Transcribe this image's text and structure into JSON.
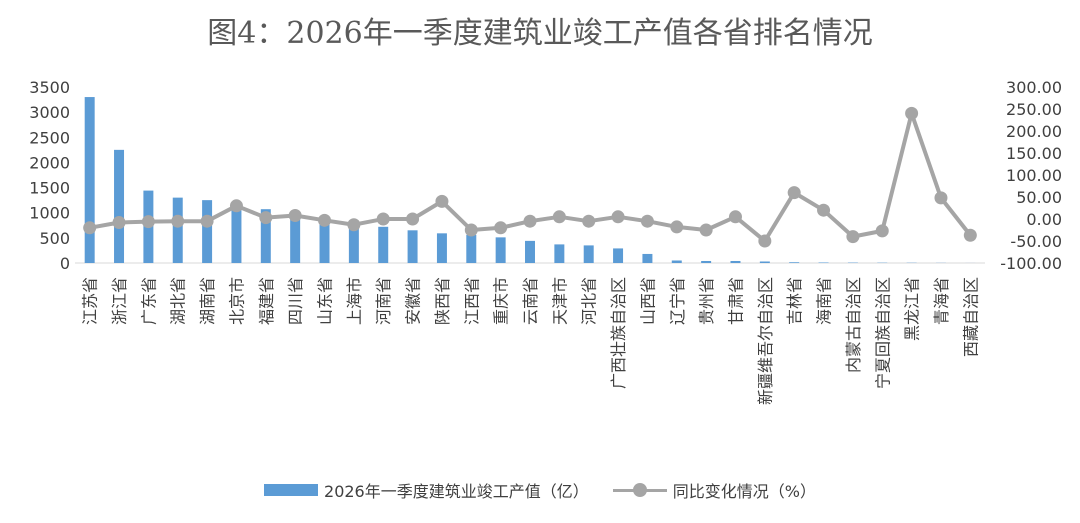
{
  "chart_data": {
    "type": "bar",
    "title": "图4：2026年一季度建筑业竣工产值各省排名情况",
    "categories": [
      "江苏省",
      "浙江省",
      "广东省",
      "湖北省",
      "湖南省",
      "北京市",
      "福建省",
      "四川省",
      "山东省",
      "上海市",
      "河南省",
      "安徽省",
      "陕西省",
      "江西省",
      "重庆市",
      "云南省",
      "天津市",
      "河北省",
      "广西壮族自治区",
      "山西省",
      "辽宁省",
      "贵州省",
      "甘肃省",
      "新疆维吾尔自治区",
      "吉林省",
      "海南省",
      "内蒙古自治区",
      "宁夏回族自治区",
      "黑龙江省",
      "青海省",
      "西藏自治区"
    ],
    "series": [
      {
        "name": "2026年一季度建筑业竣工产值（亿）",
        "type": "bar",
        "axis": "left",
        "color": "#5b9bd5",
        "values": [
          3300,
          2250,
          1440,
          1300,
          1250,
          1180,
          1070,
          980,
          880,
          780,
          720,
          650,
          590,
          560,
          510,
          440,
          370,
          350,
          290,
          180,
          50,
          40,
          40,
          30,
          15,
          10,
          8,
          6,
          5,
          3,
          1
        ]
      },
      {
        "name": "同比变化情况（%）",
        "type": "line",
        "axis": "right",
        "color": "#a5a5a5",
        "values": [
          -20,
          -8,
          -6,
          -5,
          -5,
          30,
          3,
          8,
          -3,
          -13,
          0,
          0,
          40,
          -25,
          -20,
          -5,
          5,
          -5,
          5,
          -5,
          -18,
          -25,
          5,
          -50,
          60,
          20,
          -40,
          -27,
          240,
          48,
          -37
        ]
      }
    ],
    "y_left": {
      "ylim": [
        0,
        3500
      ],
      "ticks": [
        0,
        500,
        1000,
        1500,
        2000,
        2500,
        3000,
        3500
      ]
    },
    "y_right": {
      "ylim": [
        -100,
        300
      ],
      "ticks": [
        "-100.00",
        "-50.00",
        "0.00",
        "50.00",
        "100.00",
        "150.00",
        "200.00",
        "250.00",
        "300.00"
      ]
    },
    "grid": false,
    "legend": "bottom"
  }
}
